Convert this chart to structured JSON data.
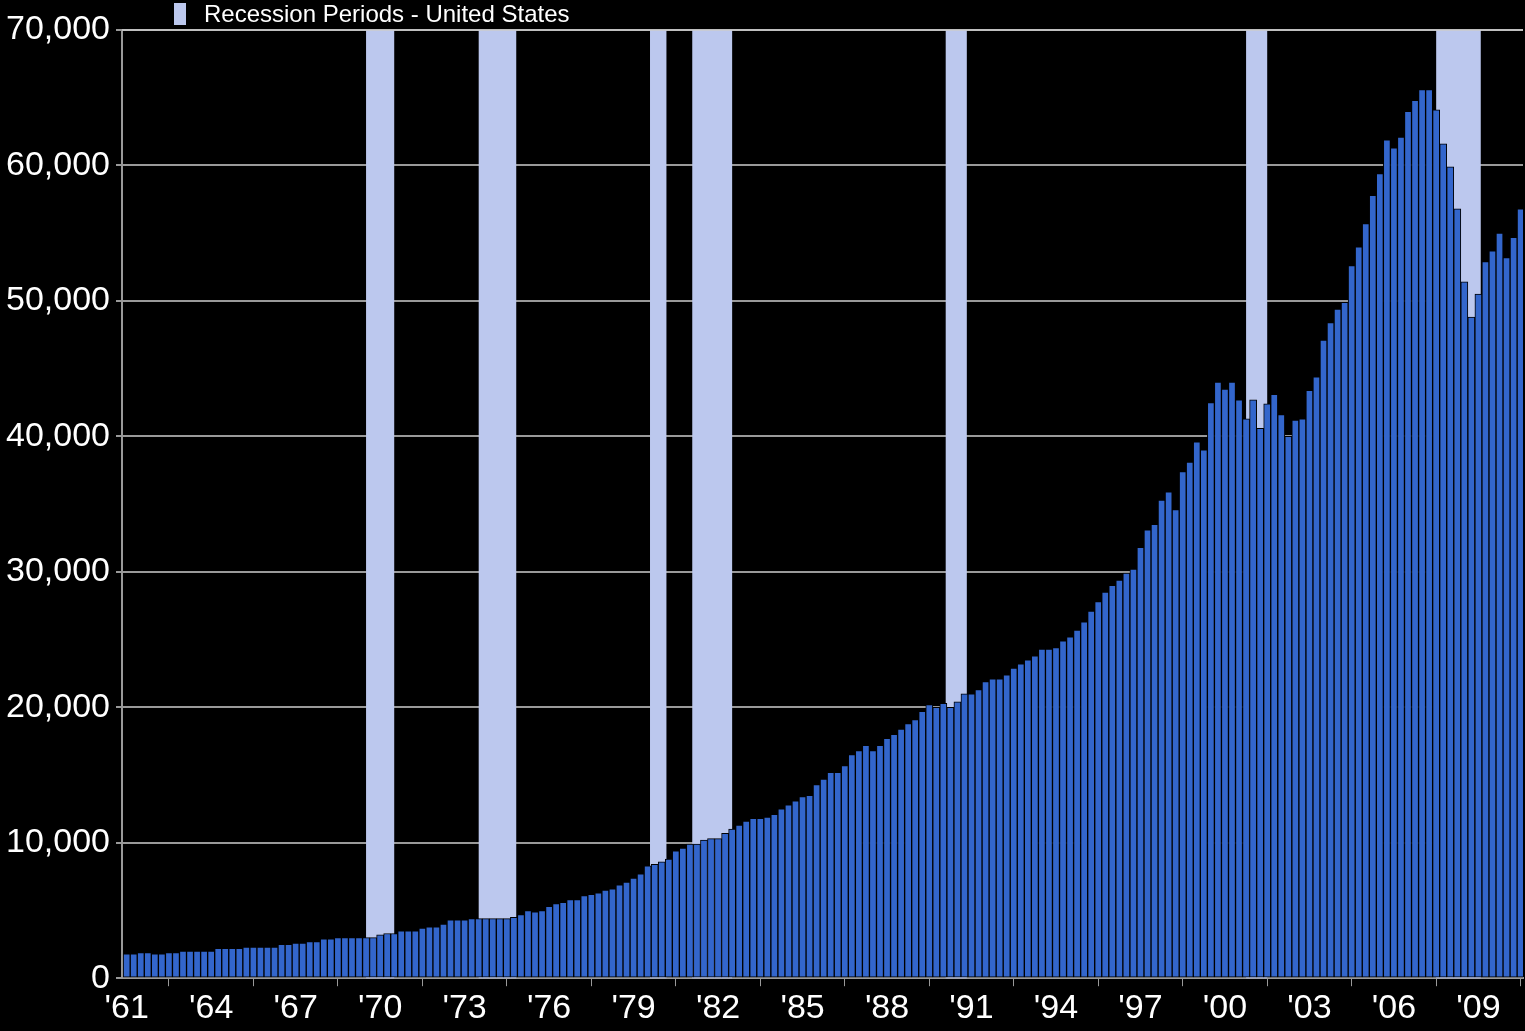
{
  "chart_data": {
    "type": "bar",
    "x": [
      "1961-01",
      "1961-04",
      "1961-07",
      "1961-10",
      "1962-01",
      "1962-04",
      "1962-07",
      "1962-10",
      "1963-01",
      "1963-04",
      "1963-07",
      "1963-10",
      "1964-01",
      "1964-04",
      "1964-07",
      "1964-10",
      "1965-01",
      "1965-04",
      "1965-07",
      "1965-10",
      "1966-01",
      "1966-04",
      "1966-07",
      "1966-10",
      "1967-01",
      "1967-04",
      "1967-07",
      "1967-10",
      "1968-01",
      "1968-04",
      "1968-07",
      "1968-10",
      "1969-01",
      "1969-04",
      "1969-07",
      "1969-10",
      "1970-01",
      "1970-04",
      "1970-07",
      "1970-10",
      "1971-01",
      "1971-04",
      "1971-07",
      "1971-10",
      "1972-01",
      "1972-04",
      "1972-07",
      "1972-10",
      "1973-01",
      "1973-04",
      "1973-07",
      "1973-10",
      "1974-01",
      "1974-04",
      "1974-07",
      "1974-10",
      "1975-01",
      "1975-04",
      "1975-07",
      "1975-10",
      "1976-01",
      "1976-04",
      "1976-07",
      "1976-10",
      "1977-01",
      "1977-04",
      "1977-07",
      "1977-10",
      "1978-01",
      "1978-04",
      "1978-07",
      "1978-10",
      "1979-01",
      "1979-04",
      "1979-07",
      "1979-10",
      "1980-01",
      "1980-04",
      "1980-07",
      "1980-10",
      "1981-01",
      "1981-04",
      "1981-07",
      "1981-10",
      "1982-01",
      "1982-04",
      "1982-07",
      "1982-10",
      "1983-01",
      "1983-04",
      "1983-07",
      "1983-10",
      "1984-01",
      "1984-04",
      "1984-07",
      "1984-10",
      "1985-01",
      "1985-04",
      "1985-07",
      "1985-10",
      "1986-01",
      "1986-04",
      "1986-07",
      "1986-10",
      "1987-01",
      "1987-04",
      "1987-07",
      "1987-10",
      "1988-01",
      "1988-04",
      "1988-07",
      "1988-10",
      "1989-01",
      "1989-04",
      "1989-07",
      "1989-10",
      "1990-01",
      "1990-04",
      "1990-07",
      "1990-10",
      "1991-01",
      "1991-04",
      "1991-07",
      "1991-10",
      "1992-01",
      "1992-04",
      "1992-07",
      "1992-10",
      "1993-01",
      "1993-04",
      "1993-07",
      "1993-10",
      "1994-01",
      "1994-04",
      "1994-07",
      "1994-10",
      "1995-01",
      "1995-04",
      "1995-07",
      "1995-10",
      "1996-01",
      "1996-04",
      "1996-07",
      "1996-10",
      "1997-01",
      "1997-04",
      "1997-07",
      "1997-10",
      "1998-01",
      "1998-04",
      "1998-07",
      "1998-10",
      "1999-01",
      "1999-04",
      "1999-07",
      "1999-10",
      "2000-01",
      "2000-04",
      "2000-07",
      "2000-10",
      "2001-01",
      "2001-04",
      "2001-07",
      "2001-10",
      "2002-01",
      "2002-04",
      "2002-07",
      "2002-10",
      "2003-01",
      "2003-04",
      "2003-07",
      "2003-10",
      "2004-01",
      "2004-04",
      "2004-07",
      "2004-10",
      "2005-01",
      "2005-04",
      "2005-07",
      "2005-10",
      "2006-01",
      "2006-04",
      "2006-07",
      "2006-10",
      "2007-01",
      "2007-04",
      "2007-07",
      "2007-10",
      "2008-01",
      "2008-04",
      "2008-07",
      "2008-10",
      "2009-01",
      "2009-04",
      "2009-07",
      "2009-10",
      "2010-01",
      "2010-04",
      "2010-07"
    ],
    "values": [
      1800,
      1800,
      1900,
      1900,
      1800,
      1800,
      1900,
      1900,
      2000,
      2000,
      2000,
      2000,
      2000,
      2200,
      2200,
      2200,
      2200,
      2300,
      2300,
      2300,
      2300,
      2300,
      2500,
      2500,
      2600,
      2600,
      2700,
      2700,
      2900,
      2900,
      3000,
      3000,
      3000,
      3000,
      3000,
      3000,
      3200,
      3300,
      3300,
      3500,
      3500,
      3500,
      3700,
      3800,
      3800,
      4000,
      4300,
      4300,
      4300,
      4400,
      4400,
      4400,
      4400,
      4400,
      4400,
      4500,
      4700,
      5000,
      4900,
      5000,
      5300,
      5500,
      5600,
      5800,
      5800,
      6100,
      6200,
      6300,
      6500,
      6600,
      6900,
      7100,
      7400,
      7700,
      8300,
      8400,
      8600,
      8800,
      9400,
      9600,
      9900,
      9900,
      10200,
      10300,
      10300,
      10700,
      11000,
      11300,
      11600,
      11800,
      11800,
      11900,
      12100,
      12500,
      12800,
      13100,
      13400,
      13500,
      14300,
      14700,
      15200,
      15200,
      15700,
      16500,
      16800,
      17200,
      16800,
      17200,
      17700,
      18000,
      18400,
      18800,
      19100,
      19700,
      20200,
      20000,
      20300,
      20000,
      20400,
      21000,
      21000,
      21300,
      21900,
      22100,
      22100,
      22400,
      22900,
      23200,
      23500,
      23800,
      24300,
      24300,
      24400,
      24900,
      25200,
      25700,
      26300,
      27100,
      27800,
      28500,
      29000,
      29400,
      29900,
      30200,
      31800,
      33100,
      33500,
      35300,
      35900,
      34600,
      37400,
      38100,
      39600,
      39000,
      42500,
      44000,
      43500,
      44000,
      42700,
      41300,
      42700,
      40600,
      42400,
      43100,
      41600,
      40000,
      41200,
      41300,
      43400,
      44400,
      47100,
      48400,
      49400,
      49900,
      52600,
      54000,
      55700,
      57800,
      59400,
      61900,
      61300,
      62100,
      64000,
      64800,
      65600,
      65600,
      64100,
      61600,
      59900,
      56800,
      51400,
      48800,
      50500,
      52900,
      53700,
      55000,
      53200,
      54700,
      56800
    ],
    "color": "#3366cc",
    "xlim": [
      "1960-11",
      "2010-08"
    ],
    "xticks": [
      {
        "value": "1961-01",
        "label": "'61"
      },
      {
        "value": "1964-01",
        "label": "'64"
      },
      {
        "value": "1967-01",
        "label": "'67"
      },
      {
        "value": "1970-01",
        "label": "'70"
      },
      {
        "value": "1973-01",
        "label": "'73"
      },
      {
        "value": "1976-01",
        "label": "'76"
      },
      {
        "value": "1979-01",
        "label": "'79"
      },
      {
        "value": "1982-01",
        "label": "'82"
      },
      {
        "value": "1985-01",
        "label": "'85"
      },
      {
        "value": "1988-01",
        "label": "'88"
      },
      {
        "value": "1991-01",
        "label": "'91"
      },
      {
        "value": "1994-01",
        "label": "'94"
      },
      {
        "value": "1997-01",
        "label": "'97"
      },
      {
        "value": "2000-01",
        "label": "'00"
      },
      {
        "value": "2003-01",
        "label": "'03"
      },
      {
        "value": "2006-01",
        "label": "'06"
      },
      {
        "value": "2009-01",
        "label": "'09"
      }
    ],
    "ylim": [
      0,
      70000
    ],
    "yticks": [
      {
        "value": 0,
        "label": "0"
      },
      {
        "value": 10000,
        "label": "10,000"
      },
      {
        "value": 20000,
        "label": "20,000"
      },
      {
        "value": 30000,
        "label": "30,000"
      },
      {
        "value": 40000,
        "label": "40,000"
      },
      {
        "value": 50000,
        "label": "50,000"
      },
      {
        "value": 60000,
        "label": "60,000"
      },
      {
        "value": 70000,
        "label": "70,000"
      }
    ],
    "bands": [
      {
        "axis": "x",
        "from": "1969-07",
        "to": "1970-07",
        "label": "Recession Periods - United States",
        "color": "#bcc8ee"
      },
      {
        "axis": "x",
        "from": "1973-07",
        "to": "1974-11",
        "color": "#bcc8ee"
      },
      {
        "axis": "x",
        "from": "1979-08",
        "to": "1980-03",
        "color": "#bcc8ee"
      },
      {
        "axis": "x",
        "from": "1981-02",
        "to": "1982-07",
        "color": "#bcc8ee"
      },
      {
        "axis": "x",
        "from": "1990-02",
        "to": "1990-11",
        "color": "#bcc8ee"
      },
      {
        "axis": "x",
        "from": "2000-10",
        "to": "2001-07",
        "color": "#bcc8ee"
      },
      {
        "axis": "x",
        "from": "2007-07",
        "to": "2009-02",
        "color": "#bcc8ee"
      }
    ],
    "grid": "y",
    "legend": "top left"
  }
}
